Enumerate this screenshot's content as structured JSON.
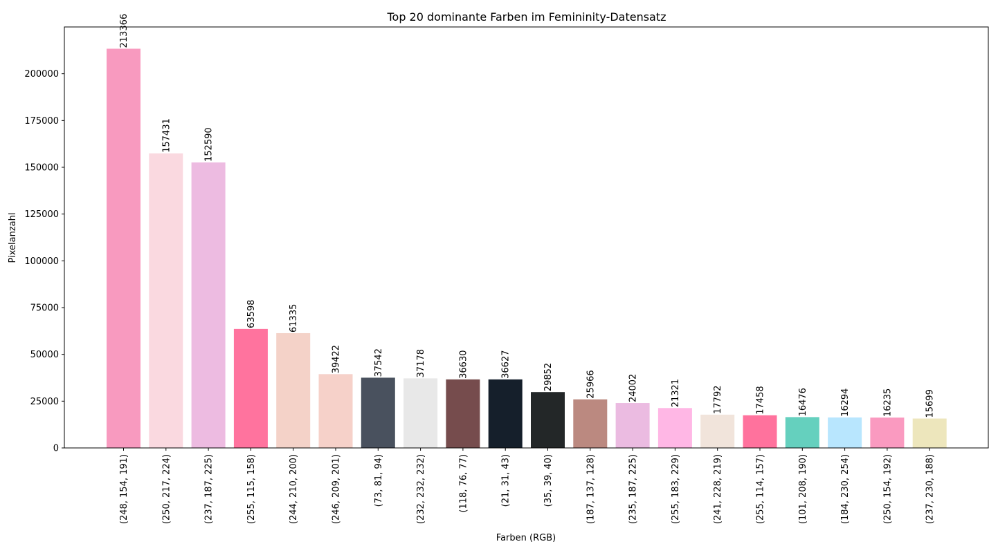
{
  "chart_data": {
    "type": "bar",
    "title": "Top 20 dominante Farben im Femininity-Datensatz",
    "xlabel": "Farben (RGB)",
    "ylabel": "Pixelanzahl",
    "ylim": [
      0,
      225000
    ],
    "yticks": [
      0,
      25000,
      50000,
      75000,
      100000,
      125000,
      150000,
      175000,
      200000
    ],
    "grid": false,
    "categories": [
      "(248, 154, 191)",
      "(250, 217, 224)",
      "(237, 187, 225)",
      "(255, 115, 158)",
      "(244, 210, 200)",
      "(246, 209, 201)",
      "(73, 81, 94)",
      "(232, 232, 232)",
      "(118, 76, 77)",
      "(21, 31, 43)",
      "(35, 39, 40)",
      "(187, 137, 128)",
      "(235, 187, 225)",
      "(255, 183, 229)",
      "(241, 228, 219)",
      "(255, 114, 157)",
      "(101, 208, 190)",
      "(184, 230, 254)",
      "(250, 154, 192)",
      "(237, 230, 188)"
    ],
    "values": [
      213366,
      157431,
      152590,
      63598,
      61335,
      39422,
      37542,
      37178,
      36630,
      36627,
      29852,
      25966,
      24002,
      21321,
      17792,
      17458,
      16476,
      16294,
      16235,
      15699
    ],
    "colors": [
      "#f89abf",
      "#fad9e0",
      "#edbbe1",
      "#ff739e",
      "#f4d2c8",
      "#f6d1c9",
      "#49515e",
      "#e8e8e8",
      "#764c4d",
      "#151f2b",
      "#232728",
      "#bb8980",
      "#ebbbe1",
      "#ffb7e5",
      "#f1e4db",
      "#ff729d",
      "#65d0be",
      "#b8e6fe",
      "#fa9ac0",
      "#ede6bc"
    ]
  }
}
